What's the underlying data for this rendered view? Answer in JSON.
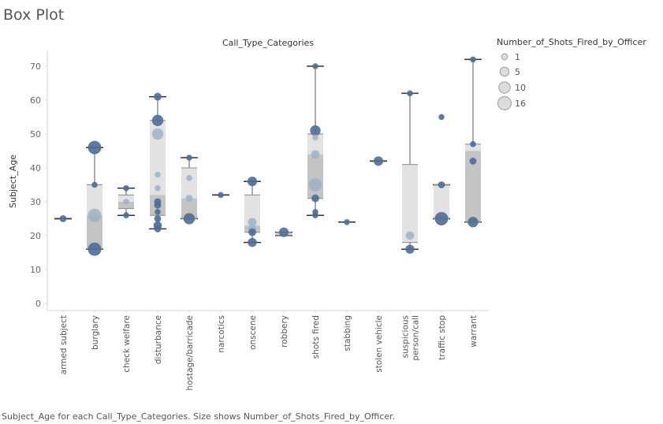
{
  "page": {
    "title": "Box Plot",
    "caption": "Subject_Age for each Call_Type_Categories.  Size shows Number_of_Shots_Fired_by_Officer."
  },
  "colors": {
    "dot": "#4e6d96",
    "dot_light": "#9fb2c8",
    "box_upper": "#e2e2e2",
    "box_lower": "#c4c4c4",
    "whisker": "#555555",
    "median": "#333333",
    "legend_fill": "#dcdcdc",
    "legend_stroke": "#a8a8a8"
  },
  "chart_data": {
    "type": "box",
    "title": "Call_Type_Categories",
    "xlabel": "Call_Type_Categories",
    "ylabel": "Subject_Age",
    "ylim": [
      0,
      75
    ],
    "yticks": [
      0,
      10,
      20,
      30,
      40,
      50,
      60,
      70
    ],
    "grid": false,
    "legend": {
      "title": "Number_of_Shots_Fired_by_Officer",
      "placement": "right",
      "sizes": [
        1,
        5,
        10,
        16
      ]
    },
    "categories": [
      "armed subject",
      "burglary",
      "check welfare",
      "disturbance",
      "hostage/barricade",
      "narcotics",
      "onscene",
      "robbery",
      "shots fired",
      "stabbing",
      "stolen vehicle",
      "suspicious person/call",
      "traffic stop",
      "warrant"
    ],
    "boxes": [
      {
        "category": "armed subject",
        "min": 25,
        "q1": 25,
        "median": 25,
        "q3": 25,
        "max": 25
      },
      {
        "category": "burglary",
        "min": 16,
        "q1": 16,
        "median": 26,
        "q3": 35,
        "max": 46
      },
      {
        "category": "check welfare",
        "min": 26,
        "q1": 28,
        "median": 30,
        "q3": 32,
        "max": 34
      },
      {
        "category": "disturbance",
        "min": 22,
        "q1": 26,
        "median": 32,
        "q3": 54,
        "max": 61
      },
      {
        "category": "hostage/barricade",
        "min": 25,
        "q1": 25,
        "median": 31,
        "q3": 40,
        "max": 43
      },
      {
        "category": "narcotics",
        "min": 32,
        "q1": 32,
        "median": 32,
        "q3": 32,
        "max": 32
      },
      {
        "category": "onscene",
        "min": 18,
        "q1": 21,
        "median": 23,
        "q3": 32,
        "max": 36
      },
      {
        "category": "robbery",
        "min": 20,
        "q1": 20,
        "median": 20.5,
        "q3": 21,
        "max": 21
      },
      {
        "category": "shots fired",
        "min": 26,
        "q1": 31,
        "median": 44,
        "q3": 50,
        "max": 70
      },
      {
        "category": "stabbing",
        "min": 24,
        "q1": 24,
        "median": 24,
        "q3": 24,
        "max": 24
      },
      {
        "category": "stolen vehicle",
        "min": 42,
        "q1": 42,
        "median": 42,
        "q3": 42,
        "max": 42
      },
      {
        "category": "suspicious person/call",
        "min": 16,
        "q1": 18,
        "median": 18,
        "q3": 41,
        "max": 62
      },
      {
        "category": "traffic stop",
        "min": 25,
        "q1": 25,
        "median": 25,
        "q3": 35,
        "max": 35
      },
      {
        "category": "warrant",
        "min": 24,
        "q1": 24,
        "median": 45,
        "q3": 47,
        "max": 72
      }
    ],
    "points": [
      {
        "category": "armed subject",
        "age": 25,
        "shots": 2
      },
      {
        "category": "burglary",
        "age": 46,
        "shots": 16
      },
      {
        "category": "burglary",
        "age": 35,
        "shots": 1
      },
      {
        "category": "burglary",
        "age": 26,
        "shots": 16,
        "light": true
      },
      {
        "category": "burglary",
        "age": 16,
        "shots": 16
      },
      {
        "category": "check welfare",
        "age": 34,
        "shots": 1
      },
      {
        "category": "check welfare",
        "age": 30,
        "shots": 1,
        "light": true
      },
      {
        "category": "check welfare",
        "age": 26,
        "shots": 1
      },
      {
        "category": "disturbance",
        "age": 61,
        "shots": 3
      },
      {
        "category": "disturbance",
        "age": 54,
        "shots": 10
      },
      {
        "category": "disturbance",
        "age": 50,
        "shots": 10,
        "light": true
      },
      {
        "category": "disturbance",
        "age": 38,
        "shots": 1,
        "light": true
      },
      {
        "category": "disturbance",
        "age": 34,
        "shots": 1,
        "light": true
      },
      {
        "category": "disturbance",
        "age": 30,
        "shots": 2
      },
      {
        "category": "disturbance",
        "age": 29,
        "shots": 2
      },
      {
        "category": "disturbance",
        "age": 27,
        "shots": 1
      },
      {
        "category": "disturbance",
        "age": 25,
        "shots": 2
      },
      {
        "category": "disturbance",
        "age": 23,
        "shots": 4
      },
      {
        "category": "disturbance",
        "age": 22,
        "shots": 2
      },
      {
        "category": "hostage/barricade",
        "age": 43,
        "shots": 1
      },
      {
        "category": "hostage/barricade",
        "age": 37,
        "shots": 1,
        "light": true
      },
      {
        "category": "hostage/barricade",
        "age": 31,
        "shots": 2,
        "light": true
      },
      {
        "category": "hostage/barricade",
        "age": 25,
        "shots": 10
      },
      {
        "category": "narcotics",
        "age": 32,
        "shots": 1
      },
      {
        "category": "onscene",
        "age": 36,
        "shots": 6
      },
      {
        "category": "onscene",
        "age": 24,
        "shots": 4,
        "light": true
      },
      {
        "category": "onscene",
        "age": 22,
        "shots": 4,
        "light": true
      },
      {
        "category": "onscene",
        "age": 21,
        "shots": 3
      },
      {
        "category": "onscene",
        "age": 18,
        "shots": 5
      },
      {
        "category": "robbery",
        "age": 21,
        "shots": 6
      },
      {
        "category": "shots fired",
        "age": 70,
        "shots": 1
      },
      {
        "category": "shots fired",
        "age": 51,
        "shots": 8
      },
      {
        "category": "shots fired",
        "age": 49,
        "shots": 1,
        "light": true
      },
      {
        "category": "shots fired",
        "age": 44,
        "shots": 4,
        "light": true
      },
      {
        "category": "shots fired",
        "age": 35,
        "shots": 16,
        "light": true
      },
      {
        "category": "shots fired",
        "age": 31,
        "shots": 3
      },
      {
        "category": "shots fired",
        "age": 27,
        "shots": 1
      },
      {
        "category": "shots fired",
        "age": 26,
        "shots": 1
      },
      {
        "category": "stabbing",
        "age": 24,
        "shots": 1
      },
      {
        "category": "stolen vehicle",
        "age": 42,
        "shots": 6
      },
      {
        "category": "suspicious person/call",
        "age": 62,
        "shots": 1
      },
      {
        "category": "suspicious person/call",
        "age": 20,
        "shots": 4,
        "light": true
      },
      {
        "category": "suspicious person/call",
        "age": 16,
        "shots": 5
      },
      {
        "category": "traffic stop",
        "age": 55,
        "shots": 1
      },
      {
        "category": "traffic stop",
        "age": 35,
        "shots": 2
      },
      {
        "category": "traffic stop",
        "age": 25,
        "shots": 16
      },
      {
        "category": "warrant",
        "age": 72,
        "shots": 1
      },
      {
        "category": "warrant",
        "age": 47,
        "shots": 1
      },
      {
        "category": "warrant",
        "age": 42,
        "shots": 2
      },
      {
        "category": "warrant",
        "age": 24,
        "shots": 8
      }
    ]
  }
}
